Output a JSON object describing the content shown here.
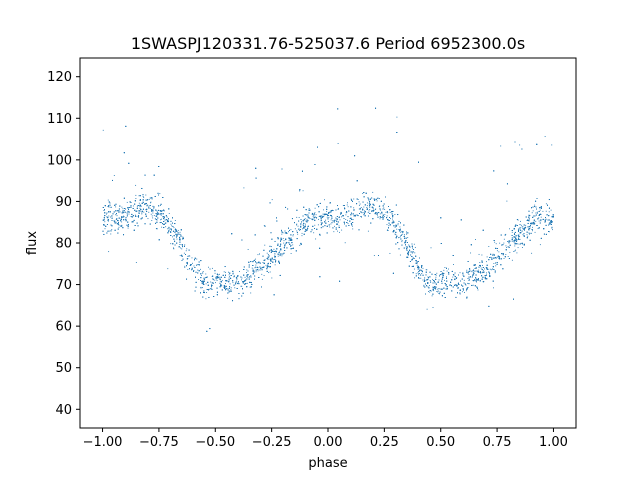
{
  "chart_data": {
    "type": "scatter",
    "title": "1SWASPJ120331.76-525037.6 Period 6952300.0s",
    "xlabel": "phase",
    "ylabel": "flux",
    "xlim": [
      -1.1,
      1.1
    ],
    "ylim": [
      35.5,
      124.5
    ],
    "xticks": [
      -1.0,
      -0.75,
      -0.5,
      -0.25,
      0.0,
      0.25,
      0.5,
      0.75,
      1.0
    ],
    "xtick_labels": [
      "−1.00",
      "−0.75",
      "−0.50",
      "−0.25",
      "0.00",
      "0.25",
      "0.50",
      "0.75",
      "1.00"
    ],
    "yticks": [
      40,
      50,
      60,
      70,
      80,
      90,
      100,
      110,
      120
    ],
    "ytick_labels": [
      "40",
      "50",
      "60",
      "70",
      "80",
      "90",
      "100",
      "110",
      "120"
    ],
    "grid": false,
    "point_color": "#1f77b4",
    "phase_range": [
      -1.0,
      1.0
    ],
    "flux_profile": {
      "phase": [
        0.0,
        0.05,
        0.1,
        0.15,
        0.2,
        0.25,
        0.3,
        0.35,
        0.4,
        0.45,
        0.5,
        0.55,
        0.6,
        0.65,
        0.7,
        0.75,
        0.8,
        0.85,
        0.9,
        0.95,
        1.0
      ],
      "flux": [
        86,
        86,
        87,
        88,
        89,
        87,
        84,
        80,
        74,
        70,
        71,
        71,
        70,
        72,
        74,
        77,
        80,
        82,
        85,
        86,
        86
      ]
    }
  }
}
